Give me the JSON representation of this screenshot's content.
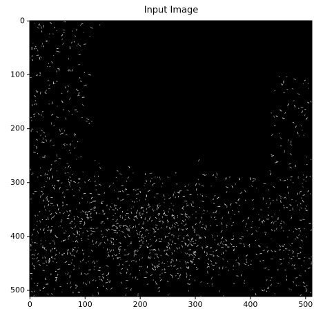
{
  "chart_data": {
    "type": "image",
    "title": "Input Image",
    "xlim": [
      -0.5,
      511.5
    ],
    "ylim": [
      511.5,
      -0.5
    ],
    "xticks": [
      0,
      100,
      200,
      300,
      400,
      500
    ],
    "yticks": [
      0,
      100,
      200,
      300,
      400,
      500
    ]
  }
}
